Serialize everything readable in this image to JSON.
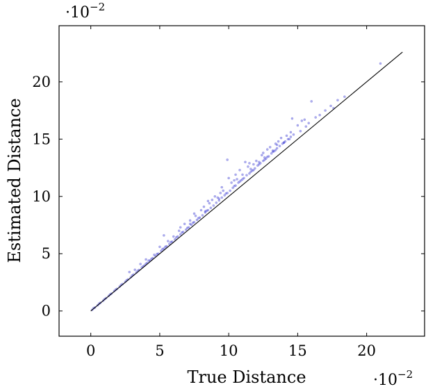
{
  "chart_data": {
    "type": "scatter",
    "xlabel": "True Distance",
    "ylabel": "Estimated Distance",
    "x_multiplier": {
      "base": "·10",
      "exp": "−2"
    },
    "y_multiplier": {
      "base": "·10",
      "exp": "−2"
    },
    "xlim": [
      -2.3,
      24.2
    ],
    "ylim": [
      -2.2,
      24.9
    ],
    "x_ticks": [
      0,
      5,
      10,
      15,
      20
    ],
    "y_ticks": [
      0,
      5,
      10,
      15,
      20
    ],
    "x_tick_labels": [
      "0",
      "5",
      "10",
      "15",
      "20"
    ],
    "y_tick_labels": [
      "0",
      "5",
      "10",
      "15",
      "20"
    ],
    "grid": false,
    "legend": "none",
    "reference_line": {
      "from": [
        0,
        0
      ],
      "to": [
        22.6,
        22.6
      ],
      "color": "#000000"
    },
    "series": [
      {
        "color": "#1a1acc",
        "points": [
          [
            0.1,
            0.1
          ],
          [
            0.3,
            0.3
          ],
          [
            0.5,
            0.5
          ],
          [
            0.7,
            0.72
          ],
          [
            0.9,
            0.9
          ],
          [
            1.1,
            1.12
          ],
          [
            1.3,
            1.32
          ],
          [
            1.5,
            1.52
          ],
          [
            1.7,
            1.74
          ],
          [
            1.9,
            1.93
          ],
          [
            2.1,
            2.14
          ],
          [
            2.3,
            2.35
          ],
          [
            2.5,
            2.55
          ],
          [
            2.7,
            2.76
          ],
          [
            2.9,
            2.95
          ],
          [
            3.1,
            3.18
          ],
          [
            3.3,
            3.36
          ],
          [
            3.5,
            3.58
          ],
          [
            3.7,
            3.8
          ],
          [
            3.9,
            3.98
          ],
          [
            4.1,
            4.2
          ],
          [
            4.3,
            4.4
          ],
          [
            4.5,
            4.62
          ],
          [
            4.7,
            4.8
          ],
          [
            4.9,
            5.0
          ],
          [
            5.1,
            5.25
          ],
          [
            5.3,
            5.45
          ],
          [
            5.5,
            5.65
          ],
          [
            5.7,
            5.85
          ],
          [
            5.9,
            6.05
          ],
          [
            6.1,
            6.25
          ],
          [
            6.3,
            6.5
          ],
          [
            6.5,
            6.68
          ],
          [
            6.7,
            6.9
          ],
          [
            6.9,
            7.1
          ],
          [
            7.1,
            7.3
          ],
          [
            7.3,
            7.52
          ],
          [
            7.5,
            7.75
          ],
          [
            7.7,
            7.95
          ],
          [
            7.9,
            8.15
          ],
          [
            8.1,
            8.35
          ],
          [
            8.3,
            8.6
          ],
          [
            8.5,
            8.8
          ],
          [
            8.7,
            9.0
          ],
          [
            8.9,
            9.2
          ],
          [
            9.1,
            9.45
          ],
          [
            9.3,
            9.65
          ],
          [
            9.5,
            9.9
          ],
          [
            9.7,
            10.1
          ],
          [
            9.9,
            10.3
          ],
          [
            10.1,
            10.5
          ],
          [
            10.3,
            10.75
          ],
          [
            10.5,
            10.95
          ],
          [
            10.7,
            11.2
          ],
          [
            10.9,
            11.4
          ],
          [
            11.1,
            11.6
          ],
          [
            11.3,
            11.85
          ],
          [
            11.5,
            12.0
          ],
          [
            11.7,
            12.25
          ],
          [
            11.9,
            12.45
          ],
          [
            12.1,
            12.7
          ],
          [
            12.3,
            12.9
          ],
          [
            12.5,
            13.1
          ],
          [
            12.7,
            13.3
          ],
          [
            12.9,
            13.5
          ],
          [
            13.1,
            13.75
          ],
          [
            13.3,
            13.95
          ],
          [
            13.5,
            14.2
          ],
          [
            13.7,
            14.4
          ],
          [
            13.9,
            14.6
          ],
          [
            14.1,
            14.8
          ],
          [
            14.3,
            15.0
          ],
          [
            14.5,
            15.2
          ],
          [
            14.7,
            15.4
          ],
          [
            2.8,
            3.4
          ],
          [
            3.6,
            4.1
          ],
          [
            4.2,
            4.4
          ],
          [
            4.6,
            4.9
          ],
          [
            5.3,
            6.6
          ],
          [
            5.6,
            6.1
          ],
          [
            6.0,
            6.5
          ],
          [
            6.4,
            7.0
          ],
          [
            6.8,
            7.6
          ],
          [
            7.2,
            7.9
          ],
          [
            7.6,
            8.3
          ],
          [
            8.0,
            8.8
          ],
          [
            8.2,
            9.1
          ],
          [
            8.6,
            9.4
          ],
          [
            8.8,
            9.7
          ],
          [
            9.0,
            10.0
          ],
          [
            9.2,
            9.9
          ],
          [
            9.4,
            10.3
          ],
          [
            9.6,
            10.5
          ],
          [
            9.9,
            13.2
          ],
          [
            10.0,
            11.6
          ],
          [
            10.2,
            11.2
          ],
          [
            10.4,
            11.4
          ],
          [
            10.6,
            11.5
          ],
          [
            10.8,
            12.3
          ],
          [
            11.0,
            11.9
          ],
          [
            11.2,
            13.0
          ],
          [
            11.4,
            12.6
          ],
          [
            11.6,
            12.4
          ],
          [
            11.8,
            12.8
          ],
          [
            12.0,
            13.1
          ],
          [
            12.2,
            13.0
          ],
          [
            12.4,
            13.6
          ],
          [
            12.6,
            13.4
          ],
          [
            12.8,
            14.1
          ],
          [
            13.0,
            14.3
          ],
          [
            13.2,
            14.0
          ],
          [
            13.4,
            14.6
          ],
          [
            13.6,
            14.8
          ],
          [
            13.8,
            15.1
          ],
          [
            14.0,
            14.7
          ],
          [
            14.2,
            15.3
          ],
          [
            14.4,
            15.0
          ],
          [
            14.6,
            16.8
          ],
          [
            15.0,
            16.2
          ],
          [
            15.2,
            15.7
          ],
          [
            15.3,
            16.6
          ],
          [
            15.6,
            16.1
          ],
          [
            15.8,
            16.4
          ],
          [
            16.0,
            18.3
          ],
          [
            16.3,
            16.9
          ],
          [
            16.6,
            17.1
          ],
          [
            17.0,
            17.5
          ],
          [
            17.4,
            17.9
          ],
          [
            17.6,
            17.7
          ],
          [
            17.9,
            18.4
          ],
          [
            18.4,
            18.7
          ],
          [
            21.0,
            21.6
          ],
          [
            0.2,
            0.25
          ],
          [
            0.6,
            0.64
          ],
          [
            1.0,
            1.04
          ],
          [
            1.4,
            1.45
          ],
          [
            1.8,
            1.86
          ],
          [
            2.2,
            2.28
          ],
          [
            2.6,
            2.68
          ],
          [
            3.0,
            3.1
          ],
          [
            3.4,
            3.5
          ],
          [
            3.8,
            3.9
          ],
          [
            4.0,
            4.12
          ],
          [
            4.4,
            4.55
          ],
          [
            4.8,
            4.98
          ],
          [
            5.2,
            5.4
          ],
          [
            5.4,
            5.6
          ],
          [
            5.8,
            6.02
          ],
          [
            6.2,
            6.42
          ],
          [
            6.6,
            6.85
          ],
          [
            7.0,
            7.25
          ],
          [
            7.4,
            7.7
          ],
          [
            7.8,
            8.1
          ],
          [
            8.4,
            8.75
          ],
          [
            9.8,
            10.25
          ],
          [
            10.4,
            10.9
          ],
          [
            11.0,
            11.5
          ],
          [
            11.6,
            12.15
          ],
          [
            12.2,
            12.8
          ],
          [
            12.8,
            13.45
          ],
          [
            13.4,
            14.05
          ],
          [
            14.0,
            14.7
          ],
          [
            6.5,
            7.3
          ],
          [
            7.5,
            8.5
          ],
          [
            8.5,
            9.6
          ],
          [
            9.5,
            10.8
          ],
          [
            10.5,
            11.9
          ],
          [
            11.5,
            12.9
          ],
          [
            12.5,
            13.8
          ],
          [
            13.5,
            14.5
          ],
          [
            14.5,
            15.6
          ],
          [
            15.5,
            16.7
          ],
          [
            5.0,
            5.6
          ],
          [
            4.0,
            4.5
          ],
          [
            3.2,
            3.6
          ],
          [
            7.2,
            7.6
          ],
          [
            8.3,
            8.7
          ],
          [
            9.3,
            9.8
          ],
          [
            10.8,
            11.3
          ],
          [
            11.8,
            12.3
          ],
          [
            12.6,
            13.2
          ],
          [
            13.2,
            13.9
          ]
        ]
      }
    ]
  }
}
